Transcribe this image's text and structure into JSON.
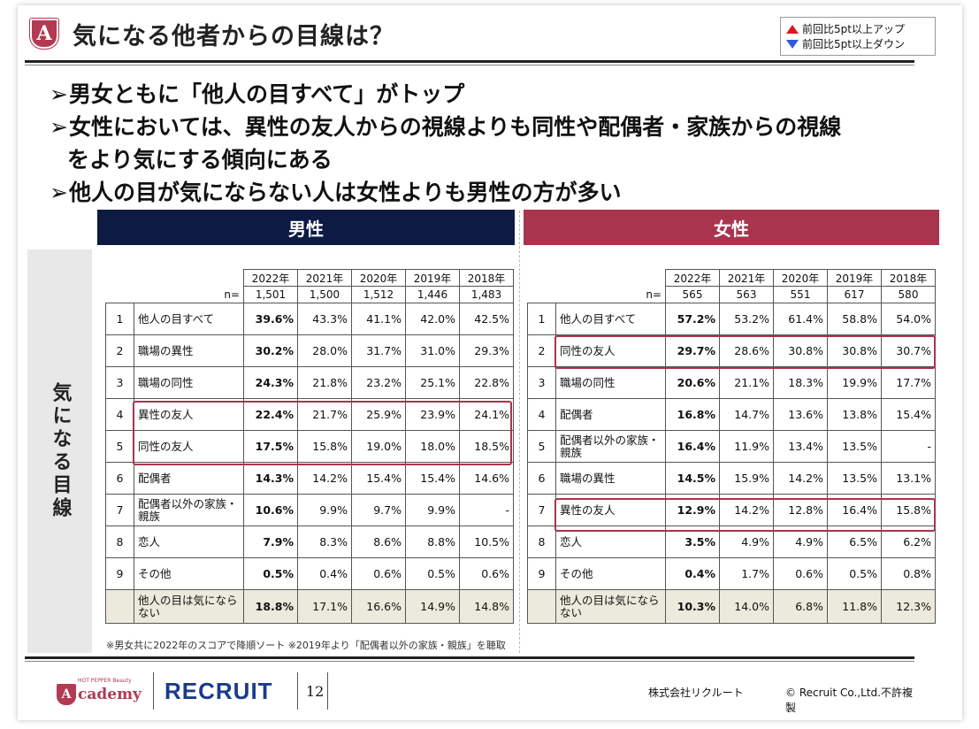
{
  "header": {
    "badge": "A",
    "title": "気になる他者からの目線は？"
  },
  "legend": {
    "up": "前回比5pt以上アップ",
    "down": "前回比5pt以上ダウン"
  },
  "bullets": [
    "男女ともに「他人の目すべて」がトップ",
    "女性においては、異性の友人からの視線よりも同性や配偶者・家族からの視線",
    "をより気にする傾向にある",
    "他人の目が気にならない人は女性よりも男性の方が多い"
  ],
  "bullet_mark": "➢",
  "side_label": "気になる目線",
  "male": {
    "title": "男性",
    "years": [
      "2022年",
      "2021年",
      "2020年",
      "2019年",
      "2018年"
    ],
    "n_label": "n=",
    "n": [
      "1,501",
      "1,500",
      "1,512",
      "1,446",
      "1,483"
    ],
    "rows": [
      {
        "rank": "1",
        "item": "他人の目すべて",
        "values": [
          "39.6%",
          "43.3%",
          "41.1%",
          "42.0%",
          "42.5%"
        ]
      },
      {
        "rank": "2",
        "item": "職場の異性",
        "values": [
          "30.2%",
          "28.0%",
          "31.7%",
          "31.0%",
          "29.3%"
        ]
      },
      {
        "rank": "3",
        "item": "職場の同性",
        "values": [
          "24.3%",
          "21.8%",
          "23.2%",
          "25.1%",
          "22.8%"
        ]
      },
      {
        "rank": "4",
        "item": "異性の友人",
        "values": [
          "22.4%",
          "21.7%",
          "25.9%",
          "23.9%",
          "24.1%"
        ]
      },
      {
        "rank": "5",
        "item": "同性の友人",
        "values": [
          "17.5%",
          "15.8%",
          "19.0%",
          "18.0%",
          "18.5%"
        ]
      },
      {
        "rank": "6",
        "item": "配偶者",
        "values": [
          "14.3%",
          "14.2%",
          "15.4%",
          "15.4%",
          "14.6%"
        ]
      },
      {
        "rank": "7",
        "item": "配偶者以外の家族・親族",
        "values": [
          "10.6%",
          "9.9%",
          "9.7%",
          "9.9%",
          "-"
        ]
      },
      {
        "rank": "8",
        "item": "恋人",
        "values": [
          "7.9%",
          "8.3%",
          "8.6%",
          "8.8%",
          "10.5%"
        ]
      },
      {
        "rank": "9",
        "item": "その他",
        "values": [
          "0.5%",
          "0.4%",
          "0.6%",
          "0.5%",
          "0.6%"
        ]
      }
    ],
    "last": {
      "item": "他人の目は気にならない",
      "values": [
        "18.8%",
        "17.1%",
        "16.6%",
        "14.9%",
        "14.8%"
      ]
    }
  },
  "female": {
    "title": "女性",
    "years": [
      "2022年",
      "2021年",
      "2020年",
      "2019年",
      "2018年"
    ],
    "n_label": "n=",
    "n": [
      "565",
      "563",
      "551",
      "617",
      "580"
    ],
    "rows": [
      {
        "rank": "1",
        "item": "他人の目すべて",
        "values": [
          "57.2%",
          "53.2%",
          "61.4%",
          "58.8%",
          "54.0%"
        ]
      },
      {
        "rank": "2",
        "item": "同性の友人",
        "values": [
          "29.7%",
          "28.6%",
          "30.8%",
          "30.8%",
          "30.7%"
        ]
      },
      {
        "rank": "3",
        "item": "職場の同性",
        "values": [
          "20.6%",
          "21.1%",
          "18.3%",
          "19.9%",
          "17.7%"
        ]
      },
      {
        "rank": "4",
        "item": "配偶者",
        "values": [
          "16.8%",
          "14.7%",
          "13.6%",
          "13.8%",
          "15.4%"
        ]
      },
      {
        "rank": "5",
        "item": "配偶者以外の家族・親族",
        "values": [
          "16.4%",
          "11.9%",
          "13.4%",
          "13.5%",
          "-"
        ]
      },
      {
        "rank": "6",
        "item": "職場の異性",
        "values": [
          "14.5%",
          "15.9%",
          "14.2%",
          "13.5%",
          "13.1%"
        ]
      },
      {
        "rank": "7",
        "item": "異性の友人",
        "values": [
          "12.9%",
          "14.2%",
          "12.8%",
          "16.4%",
          "15.8%"
        ]
      },
      {
        "rank": "8",
        "item": "恋人",
        "values": [
          "3.5%",
          "4.9%",
          "4.9%",
          "6.5%",
          "6.2%"
        ]
      },
      {
        "rank": "9",
        "item": "その他",
        "values": [
          "0.4%",
          "1.7%",
          "0.6%",
          "0.5%",
          "0.8%"
        ]
      }
    ],
    "last": {
      "item": "他人の目は気にならない",
      "values": [
        "10.3%",
        "14.0%",
        "6.8%",
        "11.8%",
        "12.3%"
      ]
    }
  },
  "note": "※男女共に2022年のスコアで降順ソート ※2019年より「配偶者以外の家族・親族」を聴取",
  "footer": {
    "academy_small": "HOT PEPPER Beauty",
    "academy_letter": "A",
    "academy_name": "cademy",
    "recruit": "RECRUIT",
    "page": "12",
    "company": "株式会社リクルート",
    "copyright": "© Recruit Co.,Ltd.不許複製"
  },
  "colors": {
    "male_header": "#0d1a44",
    "female_header": "#a9344e",
    "highlight": "#a9344e",
    "up_arrow": "#e0161e",
    "down_arrow": "#2d5ce0"
  }
}
